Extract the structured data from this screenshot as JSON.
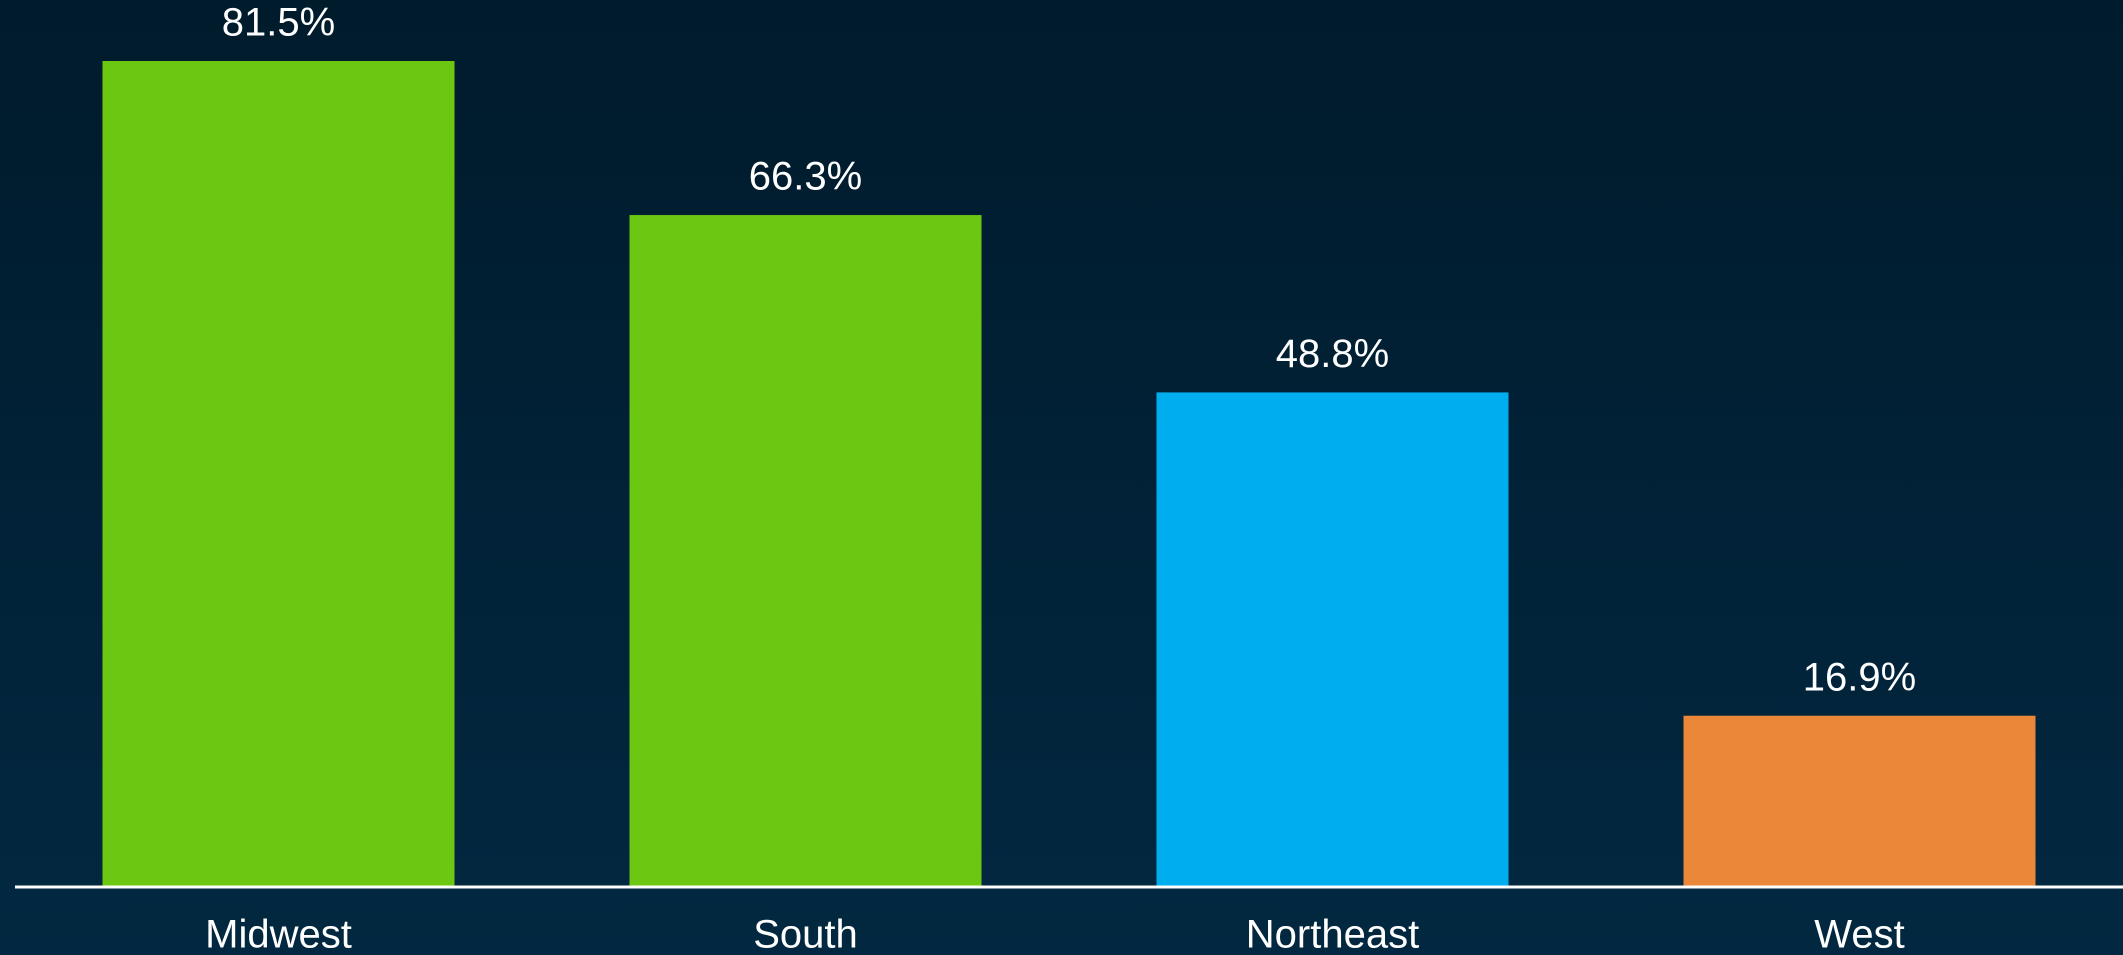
{
  "chart_data": {
    "type": "bar",
    "categories": [
      "Midwest",
      "South",
      "Northeast",
      "West"
    ],
    "values": [
      81.5,
      66.3,
      48.8,
      16.9
    ],
    "value_labels": [
      "81.5%",
      "66.3%",
      "48.8%",
      "16.9%"
    ],
    "colors": [
      "#6cc712",
      "#6cc712",
      "#00adef",
      "#ea8738"
    ]
  }
}
